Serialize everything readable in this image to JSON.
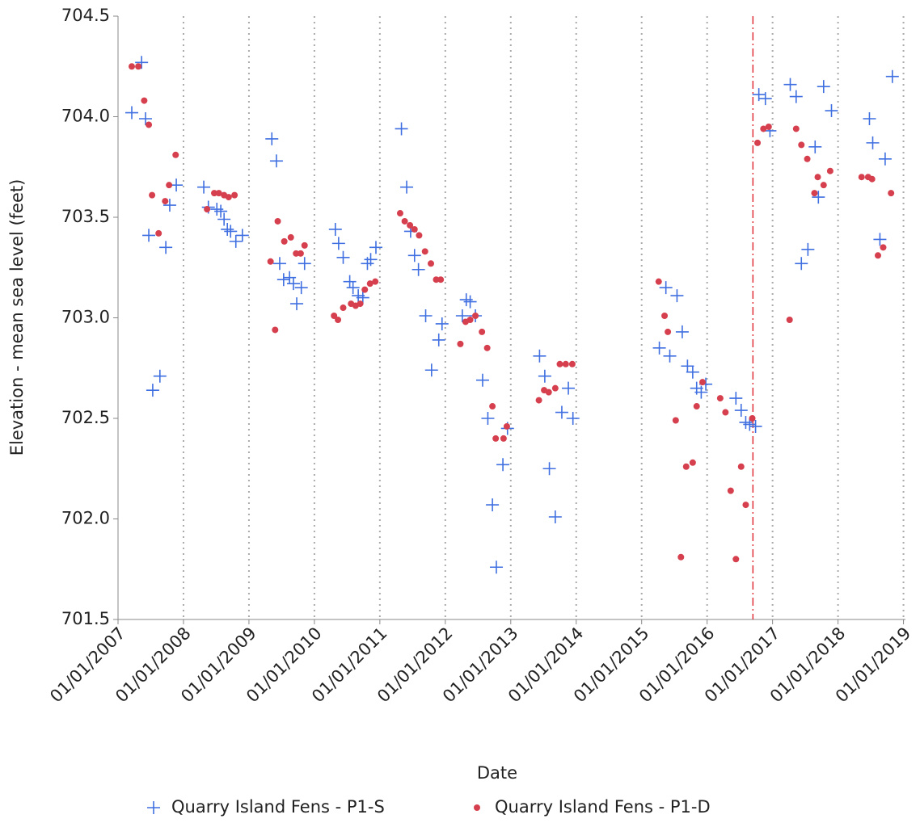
{
  "chart_data": {
    "type": "scatter",
    "x_label": "Date",
    "y_label": "Elevation - mean sea level (feet)",
    "xlim": [
      2007,
      2019.03
    ],
    "ylim": [
      701.5,
      704.5
    ],
    "xticks": [
      {
        "value": 2007,
        "label": "01/01/2007"
      },
      {
        "value": 2008,
        "label": "01/01/2008"
      },
      {
        "value": 2009,
        "label": "01/01/2009"
      },
      {
        "value": 2010,
        "label": "01/01/2010"
      },
      {
        "value": 2011,
        "label": "01/01/2011"
      },
      {
        "value": 2012,
        "label": "01/01/2012"
      },
      {
        "value": 2013,
        "label": "01/01/2013"
      },
      {
        "value": 2014,
        "label": "01/01/2014"
      },
      {
        "value": 2015,
        "label": "01/01/2015"
      },
      {
        "value": 2016,
        "label": "01/01/2016"
      },
      {
        "value": 2017,
        "label": "01/01/2017"
      },
      {
        "value": 2018,
        "label": "01/01/2018"
      },
      {
        "value": 2019,
        "label": "01/01/2019"
      }
    ],
    "yticks": [
      701.5,
      {
        "value": 702,
        "label": "702.0"
      },
      702.5,
      {
        "value": 703,
        "label": "703.0"
      },
      703.5,
      {
        "value": 704,
        "label": "704.0"
      },
      704.5
    ],
    "x_grid": true,
    "vline": {
      "x": 2016.7,
      "color": "#e0303a",
      "style": "dash-dot"
    },
    "legend": "bottom",
    "series": [
      {
        "name": "Quarry Island Fens - P1-S",
        "color": "#3f6fe0",
        "marker": "plus",
        "x": [
          2007.21,
          2007.36,
          2007.42,
          2007.47,
          2007.53,
          2007.64,
          2007.73,
          2007.79,
          2007.89,
          2008.31,
          2008.38,
          2008.51,
          2008.57,
          2008.62,
          2008.67,
          2008.72,
          2008.8,
          2008.9,
          2009.35,
          2009.42,
          2009.47,
          2009.53,
          2009.62,
          2009.68,
          2009.73,
          2009.8,
          2009.85,
          2010.32,
          2010.37,
          2010.44,
          2010.54,
          2010.59,
          2010.67,
          2010.74,
          2010.81,
          2010.86,
          2010.94,
          2011.33,
          2011.41,
          2011.47,
          2011.53,
          2011.59,
          2011.7,
          2011.79,
          2011.9,
          2011.95,
          2012.26,
          2012.32,
          2012.38,
          2012.46,
          2012.57,
          2012.65,
          2012.72,
          2012.78,
          2012.88,
          2012.95,
          2013.44,
          2013.52,
          2013.59,
          2013.68,
          2013.78,
          2013.88,
          2013.95,
          2015.27,
          2015.37,
          2015.43,
          2015.54,
          2015.62,
          2015.7,
          2015.78,
          2015.84,
          2015.91,
          2015.98,
          2016.44,
          2016.52,
          2016.59,
          2016.65,
          2016.74,
          2016.79,
          2016.89,
          2016.96,
          2017.27,
          2017.36,
          2017.44,
          2017.54,
          2017.65,
          2017.7,
          2017.78,
          2017.9,
          2018.48,
          2018.53,
          2018.64,
          2018.72,
          2018.83
        ],
        "values": [
          704.02,
          704.27,
          703.99,
          703.41,
          702.64,
          702.71,
          703.35,
          703.56,
          703.66,
          703.65,
          703.55,
          703.54,
          703.53,
          703.49,
          703.44,
          703.43,
          703.38,
          703.41,
          703.89,
          703.78,
          703.27,
          703.19,
          703.2,
          703.17,
          703.07,
          703.15,
          703.27,
          703.44,
          703.37,
          703.3,
          703.18,
          703.15,
          703.11,
          703.1,
          703.27,
          703.29,
          703.35,
          703.94,
          703.65,
          703.43,
          703.31,
          703.24,
          703.01,
          702.74,
          702.89,
          702.97,
          703.01,
          703.09,
          703.08,
          703.01,
          702.69,
          702.5,
          702.07,
          701.76,
          702.27,
          702.45,
          702.81,
          702.71,
          702.25,
          702.01,
          702.53,
          702.65,
          702.5,
          702.85,
          703.15,
          702.81,
          703.11,
          702.93,
          702.76,
          702.73,
          702.65,
          702.63,
          702.67,
          702.6,
          702.54,
          702.48,
          702.47,
          702.46,
          704.11,
          704.09,
          703.93,
          704.16,
          704.1,
          703.27,
          703.34,
          703.85,
          703.6,
          704.15,
          704.03,
          703.99,
          703.87,
          703.39,
          703.79,
          704.2
        ]
      },
      {
        "name": "Quarry Island Fens - P1-D",
        "color": "#d6404e",
        "marker": "circle",
        "x": [
          2007.21,
          2007.31,
          2007.4,
          2007.47,
          2007.52,
          2007.62,
          2007.72,
          2007.78,
          2007.88,
          2008.36,
          2008.47,
          2008.54,
          2008.62,
          2008.69,
          2008.78,
          2009.33,
          2009.4,
          2009.44,
          2009.54,
          2009.64,
          2009.72,
          2009.79,
          2009.85,
          2010.3,
          2010.36,
          2010.44,
          2010.56,
          2010.63,
          2010.7,
          2010.77,
          2010.85,
          2010.93,
          2011.31,
          2011.38,
          2011.46,
          2011.53,
          2011.6,
          2011.69,
          2011.78,
          2011.86,
          2011.93,
          2012.23,
          2012.31,
          2012.38,
          2012.46,
          2012.56,
          2012.64,
          2012.72,
          2012.77,
          2012.89,
          2012.94,
          2013.43,
          2013.51,
          2013.58,
          2013.68,
          2013.75,
          2013.84,
          2013.94,
          2015.26,
          2015.35,
          2015.4,
          2015.52,
          2015.6,
          2015.68,
          2015.78,
          2015.84,
          2015.93,
          2016.2,
          2016.28,
          2016.36,
          2016.44,
          2016.52,
          2016.59,
          2016.69,
          2016.77,
          2016.86,
          2016.94,
          2017.26,
          2017.36,
          2017.44,
          2017.53,
          2017.64,
          2017.69,
          2017.78,
          2017.88,
          2018.36,
          2018.46,
          2018.52,
          2018.61,
          2018.69,
          2018.81
        ],
        "values": [
          704.25,
          704.25,
          704.08,
          703.96,
          703.61,
          703.42,
          703.58,
          703.66,
          703.81,
          703.54,
          703.62,
          703.62,
          703.61,
          703.6,
          703.61,
          703.28,
          702.94,
          703.48,
          703.38,
          703.4,
          703.32,
          703.32,
          703.36,
          703.01,
          702.99,
          703.05,
          703.07,
          703.06,
          703.07,
          703.14,
          703.17,
          703.18,
          703.52,
          703.48,
          703.46,
          703.44,
          703.41,
          703.33,
          703.27,
          703.19,
          703.19,
          702.87,
          702.98,
          702.99,
          703.01,
          702.93,
          702.85,
          702.56,
          702.4,
          702.4,
          702.46,
          702.59,
          702.64,
          702.63,
          702.65,
          702.77,
          702.77,
          702.77,
          703.18,
          703.01,
          702.93,
          702.49,
          701.81,
          702.26,
          702.28,
          702.56,
          702.68,
          702.6,
          702.53,
          702.14,
          701.8,
          702.26,
          702.07,
          702.5,
          703.87,
          703.94,
          703.95,
          702.99,
          703.94,
          703.86,
          703.79,
          703.62,
          703.7,
          703.66,
          703.73,
          703.7,
          703.7,
          703.69,
          703.31,
          703.35,
          703.62
        ]
      }
    ]
  }
}
